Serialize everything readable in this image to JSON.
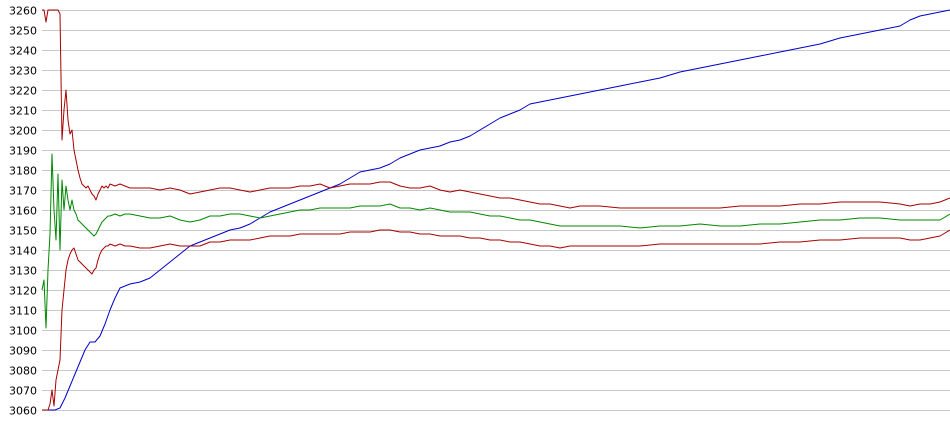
{
  "chart_data": {
    "type": "line",
    "title": "",
    "xlabel": "",
    "ylabel": "",
    "ylim": [
      3060,
      3260
    ],
    "y_ticks": [
      3060,
      3070,
      3080,
      3090,
      3100,
      3110,
      3120,
      3130,
      3140,
      3150,
      3160,
      3170,
      3180,
      3190,
      3200,
      3210,
      3220,
      3230,
      3240,
      3250,
      3260
    ],
    "xlim": [
      0,
      950
    ],
    "grid": true,
    "legend": "none",
    "series": [
      {
        "color": "#0000cc",
        "x": [
          42,
          55,
          60,
          65,
          70,
          75,
          80,
          85,
          90,
          95,
          100,
          105,
          110,
          115,
          120,
          130,
          140,
          150,
          160,
          170,
          180,
          190,
          200,
          210,
          220,
          230,
          240,
          250,
          260,
          270,
          280,
          290,
          300,
          310,
          320,
          330,
          340,
          350,
          360,
          370,
          380,
          390,
          400,
          410,
          420,
          430,
          440,
          450,
          460,
          470,
          480,
          490,
          500,
          510,
          520,
          530,
          540,
          550,
          560,
          570,
          580,
          590,
          600,
          620,
          640,
          660,
          680,
          700,
          720,
          740,
          760,
          780,
          800,
          820,
          840,
          860,
          880,
          900,
          910,
          920,
          930,
          940,
          950
        ],
        "y": [
          3060,
          3060,
          3061,
          3066,
          3072,
          3078,
          3084,
          3090,
          3094,
          3094,
          3097,
          3103,
          3110,
          3116,
          3121,
          3123,
          3124,
          3126,
          3130,
          3134,
          3138,
          3142,
          3144,
          3146,
          3148,
          3150,
          3151,
          3153,
          3156,
          3159,
          3161,
          3163,
          3165,
          3167,
          3169,
          3171,
          3173,
          3176,
          3179,
          3180,
          3181,
          3183,
          3186,
          3188,
          3190,
          3191,
          3192,
          3194,
          3195,
          3197,
          3200,
          3203,
          3206,
          3208,
          3210,
          3213,
          3214,
          3215,
          3216,
          3217,
          3218,
          3219,
          3220,
          3222,
          3224,
          3226,
          3229,
          3231,
          3233,
          3235,
          3237,
          3239,
          3241,
          3243,
          3246,
          3248,
          3250,
          3252,
          3255,
          3257,
          3258,
          3259,
          3260
        ]
      },
      {
        "color": "#aa0000",
        "x": [
          42,
          44,
          46,
          48,
          50,
          52,
          54,
          56,
          58,
          60,
          62,
          64,
          66,
          68,
          70,
          72,
          74,
          76,
          78,
          80,
          82,
          84,
          86,
          88,
          90,
          92,
          94,
          96,
          98,
          100,
          102,
          104,
          106,
          108,
          110,
          115,
          120,
          125,
          130,
          140,
          150,
          160,
          170,
          180,
          190,
          200,
          210,
          220,
          230,
          240,
          250,
          260,
          270,
          280,
          290,
          300,
          310,
          320,
          330,
          340,
          350,
          360,
          370,
          380,
          390,
          400,
          410,
          420,
          430,
          440,
          450,
          460,
          470,
          480,
          490,
          500,
          510,
          520,
          530,
          540,
          550,
          560,
          570,
          580,
          590,
          600,
          620,
          640,
          660,
          680,
          700,
          720,
          740,
          760,
          780,
          800,
          820,
          840,
          860,
          880,
          900,
          910,
          920,
          930,
          940,
          950
        ],
        "y": [
          3260,
          3260,
          3254,
          3260,
          3260,
          3260,
          3260,
          3260,
          3260,
          3258,
          3195,
          3210,
          3220,
          3205,
          3198,
          3200,
          3190,
          3185,
          3180,
          3176,
          3173,
          3172,
          3171,
          3172,
          3170,
          3168,
          3167,
          3165,
          3168,
          3170,
          3172,
          3171,
          3172,
          3171,
          3173,
          3172,
          3173,
          3172,
          3171,
          3171,
          3171,
          3170,
          3171,
          3170,
          3168,
          3169,
          3170,
          3171,
          3171,
          3170,
          3169,
          3170,
          3171,
          3171,
          3171,
          3172,
          3172,
          3173,
          3171,
          3172,
          3173,
          3173,
          3173,
          3174,
          3174,
          3172,
          3171,
          3171,
          3172,
          3170,
          3169,
          3170,
          3169,
          3168,
          3167,
          3166,
          3166,
          3165,
          3164,
          3163,
          3163,
          3162,
          3161,
          3162,
          3162,
          3162,
          3161,
          3161,
          3161,
          3161,
          3161,
          3161,
          3162,
          3162,
          3162,
          3163,
          3163,
          3164,
          3164,
          3164,
          3163,
          3162,
          3163,
          3163,
          3164,
          3166
        ]
      },
      {
        "color": "#008800",
        "x": [
          42,
          44,
          46,
          48,
          50,
          52,
          54,
          56,
          58,
          60,
          62,
          64,
          66,
          68,
          70,
          72,
          74,
          76,
          78,
          80,
          82,
          84,
          86,
          88,
          90,
          92,
          94,
          96,
          98,
          100,
          102,
          104,
          106,
          108,
          110,
          115,
          120,
          125,
          130,
          140,
          150,
          160,
          170,
          180,
          190,
          200,
          210,
          220,
          230,
          240,
          250,
          260,
          270,
          280,
          290,
          300,
          310,
          320,
          330,
          340,
          350,
          360,
          370,
          380,
          390,
          400,
          410,
          420,
          430,
          440,
          450,
          460,
          470,
          480,
          490,
          500,
          510,
          520,
          530,
          540,
          550,
          560,
          570,
          580,
          590,
          600,
          620,
          640,
          660,
          680,
          700,
          720,
          740,
          760,
          780,
          800,
          820,
          840,
          860,
          880,
          900,
          910,
          920,
          930,
          940,
          950
        ],
        "y": [
          3120,
          3125,
          3101,
          3130,
          3148,
          3188,
          3160,
          3145,
          3178,
          3140,
          3175,
          3160,
          3172,
          3165,
          3160,
          3165,
          3160,
          3158,
          3155,
          3154,
          3153,
          3152,
          3151,
          3150,
          3149,
          3148,
          3147,
          3148,
          3150,
          3152,
          3154,
          3155,
          3156,
          3157,
          3157,
          3158,
          3157,
          3158,
          3158,
          3157,
          3156,
          3156,
          3157,
          3155,
          3154,
          3155,
          3157,
          3157,
          3158,
          3158,
          3157,
          3156,
          3157,
          3158,
          3159,
          3160,
          3160,
          3161,
          3161,
          3161,
          3161,
          3162,
          3162,
          3162,
          3163,
          3161,
          3161,
          3160,
          3161,
          3160,
          3159,
          3159,
          3159,
          3158,
          3157,
          3157,
          3156,
          3155,
          3155,
          3154,
          3153,
          3152,
          3152,
          3152,
          3152,
          3152,
          3152,
          3151,
          3152,
          3152,
          3153,
          3152,
          3152,
          3153,
          3153,
          3154,
          3155,
          3155,
          3156,
          3156,
          3155,
          3155,
          3155,
          3155,
          3155,
          3158
        ]
      },
      {
        "color": "#aa0000",
        "x": [
          42,
          44,
          46,
          48,
          50,
          52,
          54,
          56,
          58,
          60,
          62,
          64,
          66,
          68,
          70,
          72,
          74,
          76,
          78,
          80,
          82,
          84,
          86,
          88,
          90,
          92,
          94,
          96,
          98,
          100,
          102,
          104,
          106,
          108,
          110,
          115,
          120,
          125,
          130,
          140,
          150,
          160,
          170,
          180,
          190,
          200,
          210,
          220,
          230,
          240,
          250,
          260,
          270,
          280,
          290,
          300,
          310,
          320,
          330,
          340,
          350,
          360,
          370,
          380,
          390,
          400,
          410,
          420,
          430,
          440,
          450,
          460,
          470,
          480,
          490,
          500,
          510,
          520,
          530,
          540,
          550,
          560,
          570,
          580,
          590,
          600,
          620,
          640,
          660,
          680,
          700,
          720,
          740,
          760,
          780,
          800,
          820,
          840,
          860,
          880,
          900,
          910,
          920,
          930,
          940,
          950
        ],
        "y": [
          3060,
          3060,
          3060,
          3060,
          3063,
          3070,
          3062,
          3075,
          3080,
          3085,
          3110,
          3120,
          3130,
          3135,
          3138,
          3140,
          3141,
          3138,
          3135,
          3134,
          3133,
          3132,
          3131,
          3130,
          3129,
          3128,
          3130,
          3131,
          3135,
          3138,
          3140,
          3141,
          3142,
          3142,
          3143,
          3142,
          3143,
          3142,
          3142,
          3141,
          3141,
          3142,
          3143,
          3142,
          3142,
          3142,
          3144,
          3144,
          3145,
          3145,
          3145,
          3146,
          3147,
          3147,
          3147,
          3148,
          3148,
          3148,
          3148,
          3148,
          3149,
          3149,
          3149,
          3150,
          3150,
          3149,
          3149,
          3148,
          3148,
          3147,
          3147,
          3147,
          3146,
          3146,
          3145,
          3145,
          3144,
          3144,
          3143,
          3142,
          3142,
          3141,
          3142,
          3142,
          3142,
          3142,
          3142,
          3142,
          3143,
          3143,
          3143,
          3143,
          3143,
          3143,
          3144,
          3144,
          3145,
          3145,
          3146,
          3146,
          3146,
          3145,
          3145,
          3146,
          3147,
          3150
        ]
      }
    ]
  }
}
